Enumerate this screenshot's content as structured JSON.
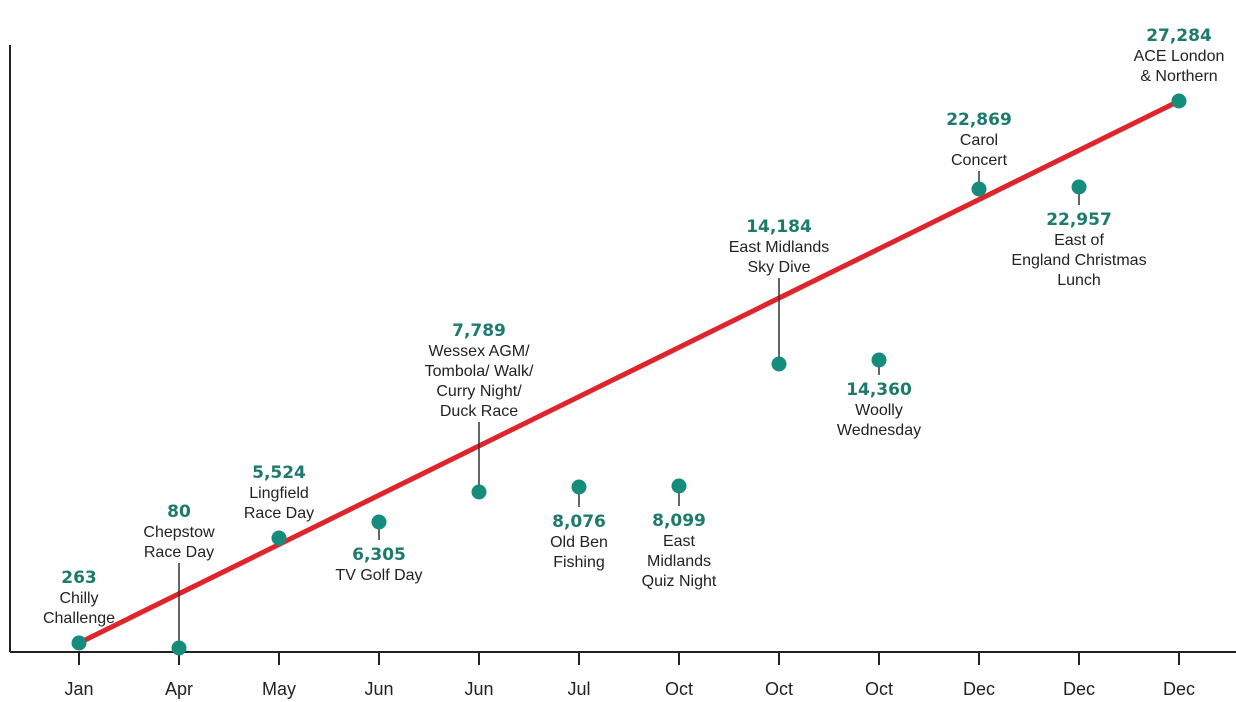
{
  "chart_data": {
    "type": "line",
    "title": "",
    "xlabel": "",
    "ylabel": "",
    "x_categories": [
      "Jan",
      "Apr",
      "May",
      "Jun",
      "Jun",
      "Jul",
      "Oct",
      "Oct",
      "Oct",
      "Dec",
      "Dec",
      "Dec"
    ],
    "ylim": [
      0,
      30000
    ],
    "grid": false,
    "colors": {
      "line": "#e0242b",
      "marker": "#168c7c",
      "value_text": "#1d7a6d",
      "axis": "#222222"
    },
    "points": [
      {
        "x": "Jan",
        "value": 263,
        "value_label": "263",
        "label": [
          "Chilly",
          "Challenge"
        ],
        "label_side": "above"
      },
      {
        "x": "Apr",
        "value": 80,
        "value_label": "80",
        "label": [
          "Chepstow",
          "Race Day"
        ],
        "label_side": "above"
      },
      {
        "x": "May",
        "value": 5524,
        "value_label": "5,524",
        "label": [
          "Lingfield",
          "Race Day"
        ],
        "label_side": "above"
      },
      {
        "x": "Jun",
        "value": 6305,
        "value_label": "6,305",
        "label": [
          "TV Golf Day"
        ],
        "label_side": "below"
      },
      {
        "x": "Jun",
        "value": 7789,
        "value_label": "7,789",
        "label": [
          "Wessex AGM/",
          "Tombola/ Walk/",
          "Curry Night/",
          "Duck Race"
        ],
        "label_side": "above"
      },
      {
        "x": "Jul",
        "value": 8076,
        "value_label": "8,076",
        "label": [
          "Old Ben",
          "Fishing"
        ],
        "label_side": "below"
      },
      {
        "x": "Oct",
        "value": 8099,
        "value_label": "8,099",
        "label": [
          "East",
          "Midlands",
          "Quiz Night"
        ],
        "label_side": "below"
      },
      {
        "x": "Oct",
        "value": 14184,
        "value_label": "14,184",
        "label": [
          "East Midlands",
          "Sky Dive"
        ],
        "label_side": "above"
      },
      {
        "x": "Oct",
        "value": 14360,
        "value_label": "14,360",
        "label": [
          "Woolly",
          "Wednesday"
        ],
        "label_side": "below"
      },
      {
        "x": "Dec",
        "value": 22869,
        "value_label": "22,869",
        "label": [
          "Carol",
          "Concert"
        ],
        "label_side": "above"
      },
      {
        "x": "Dec",
        "value": 22957,
        "value_label": "22,957",
        "label": [
          "East of",
          "England Christmas",
          "Lunch"
        ],
        "label_side": "below"
      },
      {
        "x": "Dec",
        "value": 27284,
        "value_label": "27,284",
        "label": [
          "ACE London",
          "& Northern"
        ],
        "label_side": "above"
      }
    ],
    "trend_line": {
      "from_value": 0,
      "to_value": 27284
    }
  }
}
